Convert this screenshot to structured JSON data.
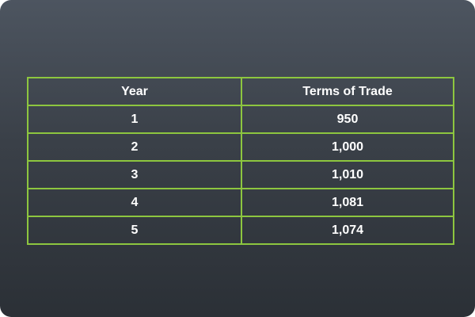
{
  "chart_data": {
    "type": "table",
    "columns": [
      "Year",
      "Terms of Trade"
    ],
    "rows": [
      [
        "1",
        "950"
      ],
      [
        "2",
        "1,000"
      ],
      [
        "3",
        "1,010"
      ],
      [
        "4",
        "1,081"
      ],
      [
        "5",
        "1,074"
      ]
    ]
  },
  "colors": {
    "border": "#8dc63f",
    "text": "#ffffff",
    "background_top": "#4d5560",
    "background_bottom": "#2b3036"
  }
}
